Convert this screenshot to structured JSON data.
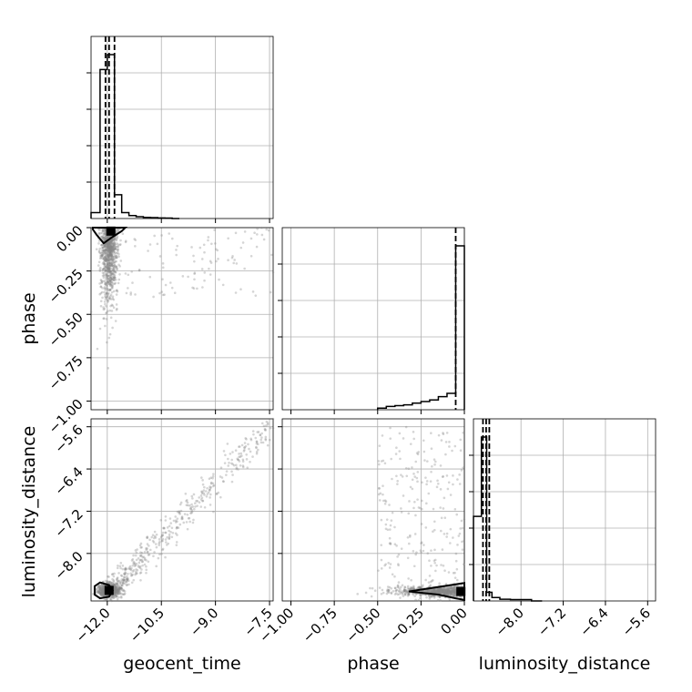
{
  "chart_data": {
    "type": "scatter",
    "title": "",
    "parameters": [
      "geocent_time",
      "phase",
      "luminosity_distance"
    ],
    "axes": {
      "geocent_time": {
        "label": "geocent_time",
        "range": [
          -12.45,
          -7.4
        ],
        "ticks": [
          -12.0,
          -10.5,
          -9.0,
          -7.5
        ],
        "tick_labels": [
          "−12.0",
          "−10.5",
          "−9.0",
          "−7.5"
        ]
      },
      "phase": {
        "label": "phase",
        "range": [
          -1.05,
          0.0
        ],
        "ticks": [
          -1.0,
          -0.75,
          -0.5,
          -0.25,
          0.0
        ],
        "tick_labels": [
          "−1.00",
          "−0.75",
          "−0.50",
          "−0.25",
          "0.00"
        ]
      },
      "luminosity_distance": {
        "label": "luminosity_distance",
        "range": [
          -8.9,
          -5.45
        ],
        "ticks": [
          -8.0,
          -7.2,
          -6.4,
          -5.6
        ],
        "tick_labels": [
          "−8.0",
          "−7.2",
          "−6.4",
          "−5.6"
        ]
      }
    },
    "histograms": {
      "geocent_time": {
        "bin_edges": [
          -12.45,
          -12.2,
          -12.0,
          -11.8,
          -11.6,
          -11.4,
          -11.2,
          -11.0,
          -10.8,
          -10.6,
          -10.4,
          -10.2,
          -10.0
        ],
        "counts": [
          0.04,
          1.0,
          1.1,
          0.16,
          0.04,
          0.02,
          0.012,
          0.008,
          0.006,
          0.004,
          0.003,
          0.0
        ],
        "quantiles": [
          -12.05,
          -11.95,
          -11.8
        ]
      },
      "phase": {
        "bin_edges": [
          -0.5,
          -0.45,
          -0.4,
          -0.35,
          -0.3,
          -0.25,
          -0.2,
          -0.15,
          -0.1,
          -0.05,
          0.0
        ],
        "counts": [
          0.01,
          0.02,
          0.025,
          0.03,
          0.04,
          0.05,
          0.06,
          0.08,
          0.1,
          1.0
        ],
        "quantiles": [
          -0.05
        ]
      },
      "luminosity_distance": {
        "bin_edges": [
          -8.9,
          -8.75,
          -8.65,
          -8.55,
          -8.4,
          -8.2,
          -8.0,
          -7.8,
          -7.6
        ],
        "counts": [
          0.49,
          0.95,
          0.05,
          0.02,
          0.01,
          0.008,
          0.008,
          0.0
        ],
        "quantiles": [
          -8.72,
          -8.66,
          -8.6
        ]
      }
    },
    "correlations": [
      {
        "x": "geocent_time",
        "y": "phase",
        "peak": [
          -12.0,
          -0.01
        ],
        "cluster_note": "dense at geocent_time ≈ −12.0, phase from 0 to −0.6"
      },
      {
        "x": "geocent_time",
        "y": "luminosity_distance",
        "peak": [
          -11.95,
          -8.7
        ],
        "trend": "positive linear tail toward (−7.4, −5.6)"
      },
      {
        "x": "phase",
        "y": "luminosity_distance",
        "peak": [
          -0.02,
          -8.7
        ],
        "trend": "band near luminosity_distance ≈ −8.7"
      }
    ],
    "grid": true,
    "legend": "none"
  }
}
